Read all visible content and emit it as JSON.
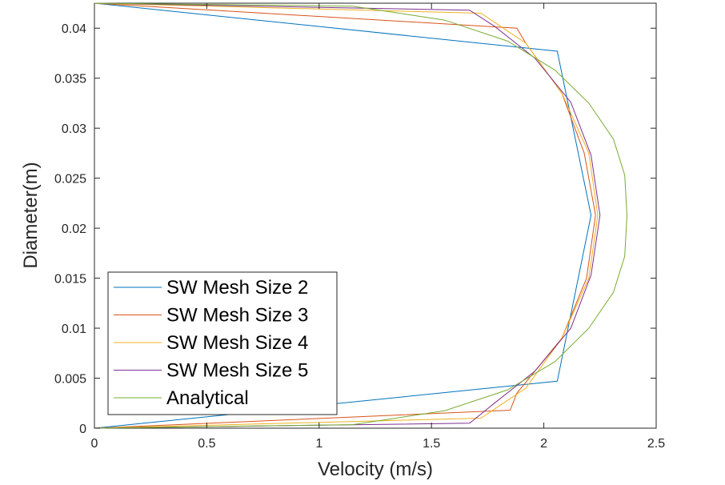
{
  "chart_data": {
    "type": "line",
    "xlabel": "Velocity (m/s)",
    "ylabel": "Diameter(m)",
    "xlim": [
      0,
      2.5
    ],
    "ylim": [
      0,
      0.0425
    ],
    "xticks": [
      0,
      0.5,
      1,
      1.5,
      2,
      2.5
    ],
    "xtick_labels": [
      "0",
      "0.5",
      "1",
      "1.5",
      "2",
      "2.5"
    ],
    "yticks": [
      0,
      0.005,
      0.01,
      0.015,
      0.02,
      0.025,
      0.03,
      0.035,
      0.04
    ],
    "ytick_labels": [
      "0",
      "0.005",
      "0.01",
      "0.015",
      "0.02",
      "0.025",
      "0.03",
      "0.035",
      "0.04"
    ],
    "grid": false,
    "legend_position": "bottom-left",
    "series": [
      {
        "name": "SW Mesh Size 2",
        "color": "#0072BD",
        "x": [
          0,
          2.06,
          2.21,
          2.06,
          0
        ],
        "y": [
          0,
          0.0047,
          0.0213,
          0.0377,
          0.0425
        ]
      },
      {
        "name": "SW Mesh Size 3",
        "color": "#D95319",
        "x": [
          0,
          1.85,
          1.88,
          2.08,
          2.19,
          2.23,
          2.18,
          2.08,
          1.92,
          1.88,
          0
        ],
        "y": [
          0,
          0.0018,
          0.0035,
          0.009,
          0.015,
          0.0213,
          0.0275,
          0.0335,
          0.0385,
          0.04,
          0.0425
        ]
      },
      {
        "name": "SW Mesh Size 4",
        "color": "#EDB120",
        "x": [
          0,
          1.72,
          1.92,
          2.08,
          2.2,
          2.24,
          2.2,
          2.08,
          1.92,
          1.72,
          0
        ],
        "y": [
          0,
          0.001,
          0.004,
          0.009,
          0.015,
          0.0213,
          0.0275,
          0.0335,
          0.0385,
          0.0415,
          0.0425
        ]
      },
      {
        "name": "SW Mesh Size 5",
        "color": "#7E2F8E",
        "x": [
          0,
          1.67,
          1.78,
          1.96,
          2.12,
          2.21,
          2.25,
          2.21,
          2.12,
          1.96,
          1.78,
          1.67,
          0
        ],
        "y": [
          0,
          0.0005,
          0.0025,
          0.0057,
          0.01,
          0.0153,
          0.0213,
          0.0273,
          0.0326,
          0.037,
          0.0402,
          0.0418,
          0.0425
        ]
      },
      {
        "name": "Analytical",
        "color": "#77AC30",
        "x": [
          0,
          1.15,
          1.56,
          1.84,
          2.05,
          2.2,
          2.31,
          2.36,
          2.37,
          2.36,
          2.31,
          2.2,
          2.05,
          1.84,
          1.56,
          1.15,
          0
        ],
        "y": [
          0,
          0.00035,
          0.00175,
          0.00384,
          0.00666,
          0.01,
          0.0136,
          0.0172,
          0.0213,
          0.0253,
          0.0289,
          0.0325,
          0.0358,
          0.0387,
          0.0408,
          0.0422,
          0.0425
        ]
      }
    ]
  }
}
